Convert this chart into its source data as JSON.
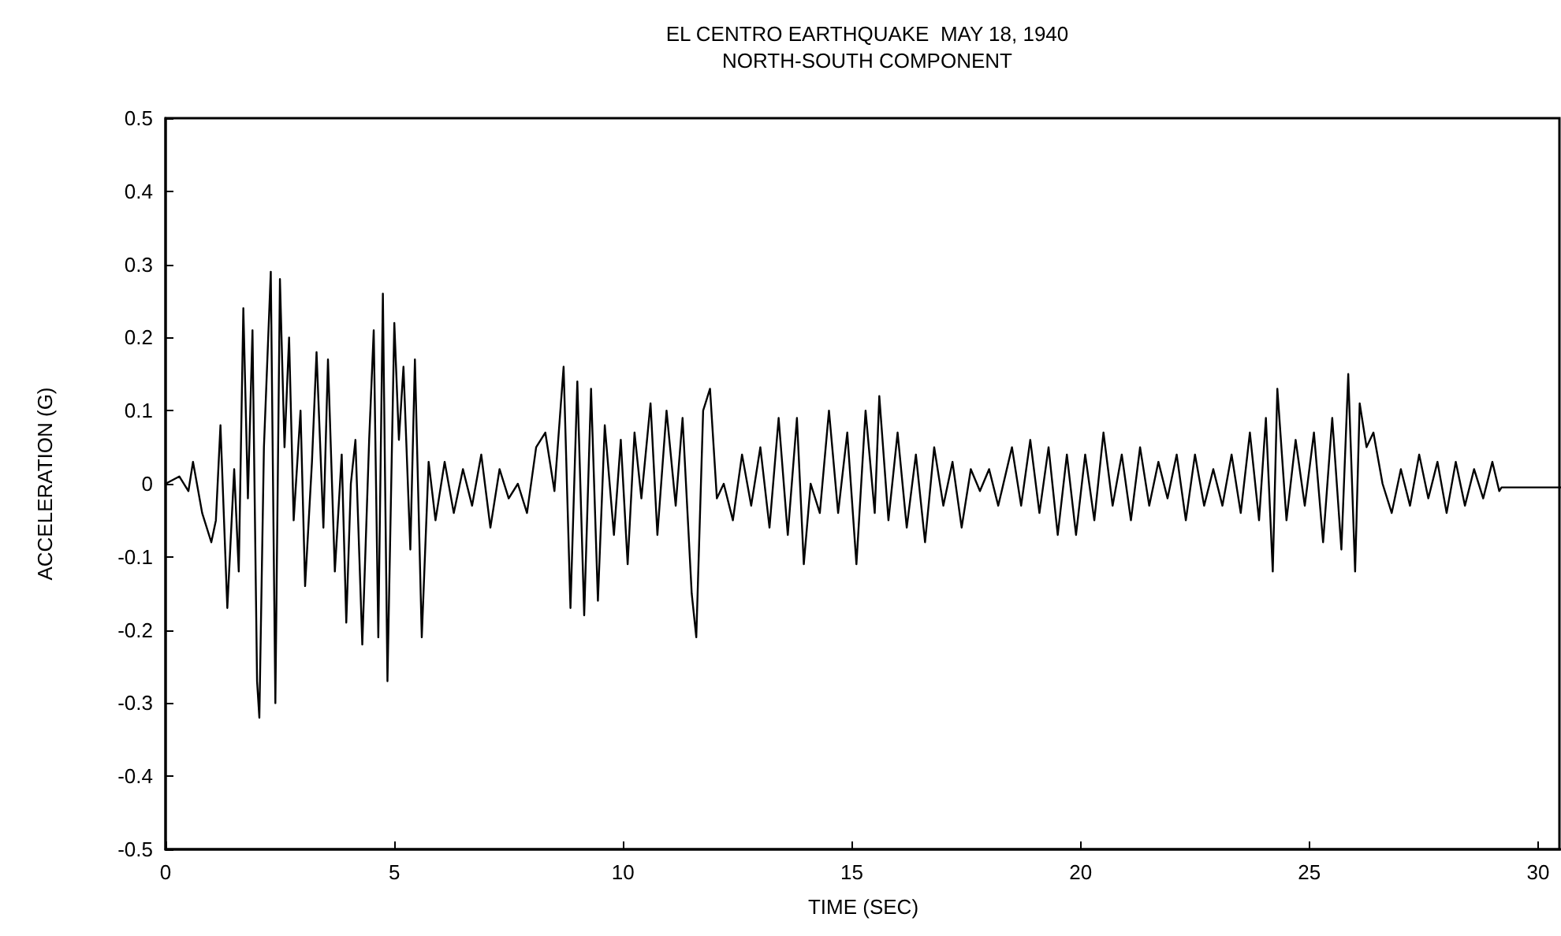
{
  "chart_data": {
    "type": "line",
    "title": "EL CENTRO EARTHQUAKE  MAY 18, 1940",
    "subtitle": "NORTH-SOUTH COMPONENT",
    "xlabel": "TIME (SEC)",
    "ylabel": "ACCELERATION (G)",
    "xlim": [
      0,
      30.5
    ],
    "xticks": [
      0,
      5,
      10,
      15,
      20,
      25,
      30
    ],
    "ylim": [
      -0.5,
      0.5
    ],
    "yticks": [
      -0.5,
      -0.4,
      -0.3,
      -0.2,
      -0.1,
      0,
      0.1,
      0.2,
      0.3,
      0.4,
      0.5
    ],
    "grid": false,
    "marker": "none",
    "line_style": "solid",
    "series": [
      {
        "color": "#000000",
        "x": [
          0,
          0.3,
          0.5,
          0.6,
          0.8,
          1.0,
          1.1,
          1.2,
          1.35,
          1.5,
          1.6,
          1.7,
          1.8,
          1.9,
          2.0,
          2.05,
          2.15,
          2.3,
          2.4,
          2.5,
          2.6,
          2.7,
          2.8,
          2.95,
          3.05,
          3.2,
          3.3,
          3.45,
          3.55,
          3.7,
          3.85,
          3.95,
          4.05,
          4.15,
          4.3,
          4.45,
          4.55,
          4.65,
          4.75,
          4.85,
          5.0,
          5.1,
          5.2,
          5.35,
          5.45,
          5.6,
          5.75,
          5.9,
          6.1,
          6.3,
          6.5,
          6.7,
          6.9,
          7.1,
          7.3,
          7.5,
          7.7,
          7.9,
          8.1,
          8.3,
          8.5,
          8.7,
          8.85,
          9.0,
          9.15,
          9.3,
          9.45,
          9.6,
          9.8,
          9.95,
          10.1,
          10.25,
          10.4,
          10.6,
          10.75,
          10.95,
          11.15,
          11.3,
          11.5,
          11.6,
          11.75,
          11.9,
          12.05,
          12.2,
          12.4,
          12.6,
          12.8,
          13.0,
          13.2,
          13.4,
          13.6,
          13.8,
          13.95,
          14.1,
          14.3,
          14.5,
          14.7,
          14.9,
          15.1,
          15.3,
          15.5,
          15.6,
          15.8,
          16.0,
          16.2,
          16.4,
          16.6,
          16.8,
          17.0,
          17.2,
          17.4,
          17.6,
          17.8,
          18.0,
          18.2,
          18.5,
          18.7,
          18.9,
          19.1,
          19.3,
          19.5,
          19.7,
          19.9,
          20.1,
          20.3,
          20.5,
          20.7,
          20.9,
          21.1,
          21.3,
          21.5,
          21.7,
          21.9,
          22.1,
          22.3,
          22.5,
          22.7,
          22.9,
          23.1,
          23.3,
          23.5,
          23.7,
          23.9,
          24.05,
          24.2,
          24.3,
          24.5,
          24.7,
          24.9,
          25.1,
          25.3,
          25.5,
          25.7,
          25.85,
          26.0,
          26.1,
          26.25,
          26.4,
          26.6,
          26.8,
          27.0,
          27.2,
          27.4,
          27.6,
          27.8,
          28.0,
          28.2,
          28.4,
          28.6,
          28.8,
          29.0,
          29.15,
          29.2,
          30.5
        ],
        "values": [
          0,
          0.01,
          -0.01,
          0.03,
          -0.04,
          -0.08,
          -0.05,
          0.08,
          -0.17,
          0.02,
          -0.12,
          0.24,
          -0.02,
          0.21,
          -0.27,
          -0.32,
          0.05,
          0.29,
          -0.3,
          0.28,
          0.05,
          0.2,
          -0.05,
          0.1,
          -0.14,
          0.03,
          0.18,
          -0.06,
          0.17,
          -0.12,
          0.04,
          -0.19,
          0.0,
          0.06,
          -0.22,
          0.06,
          0.21,
          -0.21,
          0.26,
          -0.27,
          0.22,
          0.06,
          0.16,
          -0.09,
          0.17,
          -0.21,
          0.03,
          -0.05,
          0.03,
          -0.04,
          0.02,
          -0.03,
          0.04,
          -0.06,
          0.02,
          -0.02,
          0.0,
          -0.04,
          0.05,
          0.07,
          -0.01,
          0.16,
          -0.17,
          0.14,
          -0.18,
          0.13,
          -0.16,
          0.08,
          -0.07,
          0.06,
          -0.11,
          0.07,
          -0.02,
          0.11,
          -0.07,
          0.1,
          -0.03,
          0.09,
          -0.15,
          -0.21,
          0.1,
          0.13,
          -0.02,
          0.0,
          -0.05,
          0.04,
          -0.03,
          0.05,
          -0.06,
          0.09,
          -0.07,
          0.09,
          -0.11,
          0.0,
          -0.04,
          0.1,
          -0.04,
          0.07,
          -0.11,
          0.1,
          -0.04,
          0.12,
          -0.05,
          0.07,
          -0.06,
          0.04,
          -0.08,
          0.05,
          -0.03,
          0.03,
          -0.06,
          0.02,
          -0.01,
          0.02,
          -0.03,
          0.05,
          -0.03,
          0.06,
          -0.04,
          0.05,
          -0.07,
          0.04,
          -0.07,
          0.04,
          -0.05,
          0.07,
          -0.03,
          0.04,
          -0.05,
          0.05,
          -0.03,
          0.03,
          -0.02,
          0.04,
          -0.05,
          0.04,
          -0.03,
          0.02,
          -0.03,
          0.04,
          -0.04,
          0.07,
          -0.05,
          0.09,
          -0.12,
          0.13,
          -0.05,
          0.06,
          -0.03,
          0.07,
          -0.08,
          0.09,
          -0.09,
          0.15,
          -0.12,
          0.11,
          0.05,
          0.07,
          0.0,
          -0.04,
          0.02,
          -0.03,
          0.04,
          -0.02,
          0.03,
          -0.04,
          0.03,
          -0.03,
          0.02,
          -0.02,
          0.03,
          -0.01,
          -0.005,
          -0.005
        ]
      }
    ]
  }
}
